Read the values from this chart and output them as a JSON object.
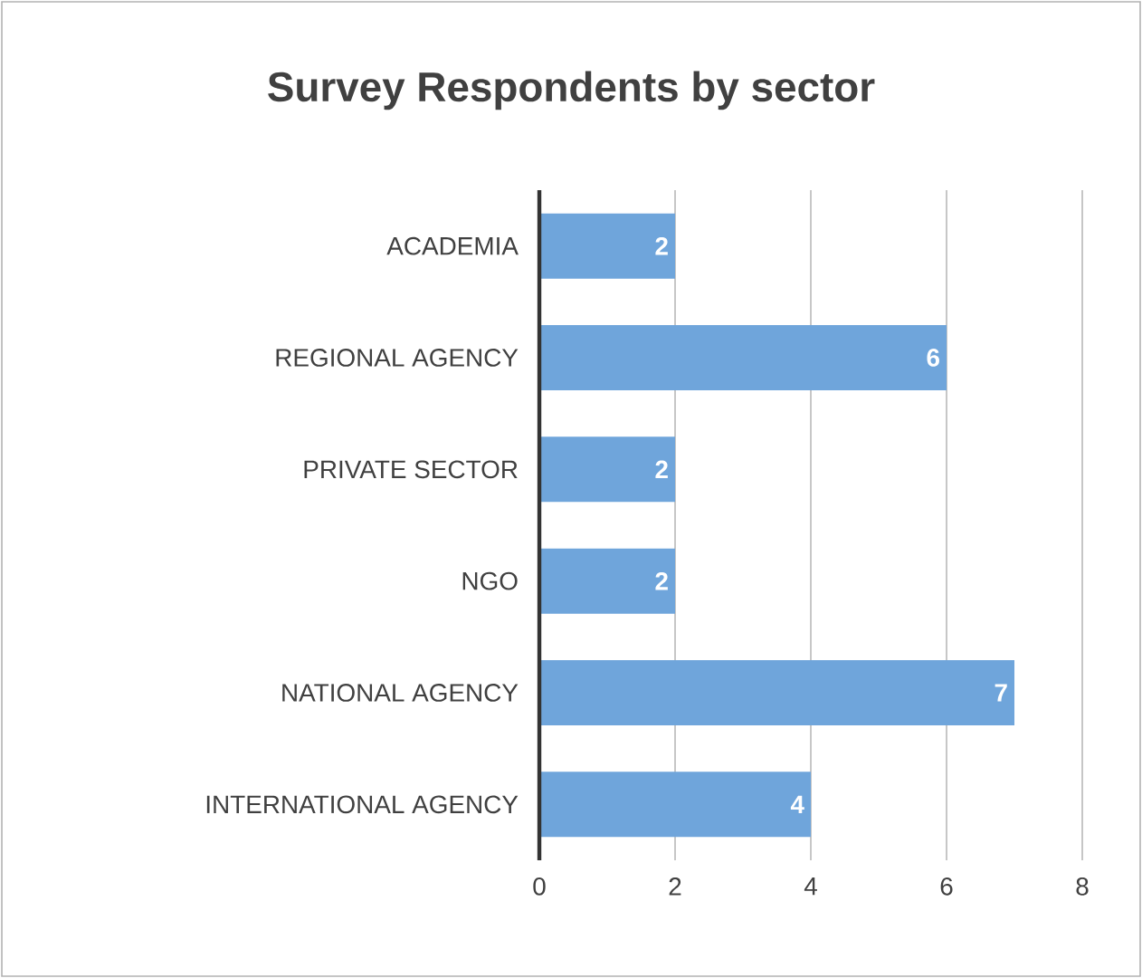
{
  "chart_data": {
    "type": "bar",
    "orientation": "horizontal",
    "title": "Survey Respondents by sector",
    "categories": [
      "ACADEMIA",
      "REGIONAL AGENCY",
      "PRIVATE SECTOR",
      "NGO",
      "NATIONAL AGENCY",
      "INTERNATIONAL AGENCY"
    ],
    "values": [
      2,
      6,
      2,
      2,
      7,
      4
    ],
    "color": "#6fa5db",
    "xlim": [
      0,
      8
    ],
    "xticks": [
      0,
      2,
      4,
      6,
      8
    ],
    "grid": "x",
    "data_labels": true
  }
}
